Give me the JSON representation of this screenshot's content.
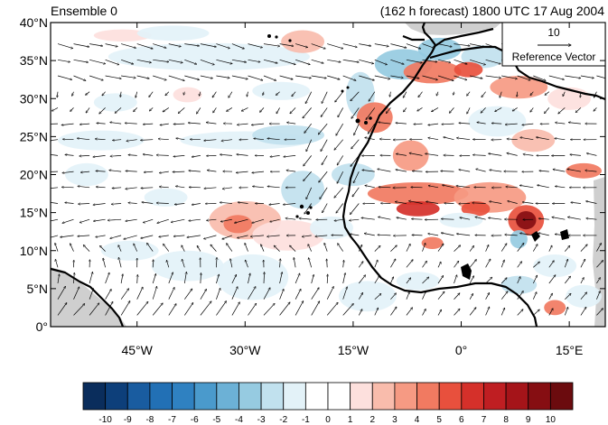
{
  "header": {
    "left_title": "Ensemble 0",
    "right_title": "(162 h forecast) 1800 UTC 17 Aug 2004"
  },
  "reference_vector": {
    "magnitude_label": "10",
    "label": "Reference Vector"
  },
  "map": {
    "lon_range": [
      -57,
      20
    ],
    "lat_range": [
      0,
      40
    ],
    "y_ticks": [
      {
        "lat": 40,
        "label": "40°N"
      },
      {
        "lat": 35,
        "label": "35°N"
      },
      {
        "lat": 30,
        "label": "30°N"
      },
      {
        "lat": 25,
        "label": "25°N"
      },
      {
        "lat": 20,
        "label": "20°N"
      },
      {
        "lat": 15,
        "label": "15°N"
      },
      {
        "lat": 10,
        "label": "10°N"
      },
      {
        "lat": 5,
        "label": "5°N"
      },
      {
        "lat": 0,
        "label": "0°"
      }
    ],
    "x_ticks": [
      {
        "lon": -45,
        "label": "45°W"
      },
      {
        "lon": -30,
        "label": "30°W"
      },
      {
        "lon": -15,
        "label": "15°W"
      },
      {
        "lon": 0,
        "label": "0°"
      },
      {
        "lon": 15,
        "label": "15°E"
      }
    ],
    "anomalies": [
      {
        "lon": -47,
        "lat": 38.3,
        "rx": 4,
        "ry": 0.8,
        "value": 1.5
      },
      {
        "lon": -40,
        "lat": 38.6,
        "rx": 5,
        "ry": 1,
        "value": -2
      },
      {
        "lon": -35,
        "lat": 35.5,
        "rx": 14,
        "ry": 1.8,
        "value": -2
      },
      {
        "lon": -22,
        "lat": 37.5,
        "rx": 3,
        "ry": 1.5,
        "value": 2
      },
      {
        "lon": -25,
        "lat": 31,
        "rx": 4,
        "ry": 1.2,
        "value": -1.5
      },
      {
        "lon": -48,
        "lat": 29.5,
        "rx": 3,
        "ry": 1.2,
        "value": -1.5
      },
      {
        "lon": -38,
        "lat": 30.5,
        "rx": 2,
        "ry": 1,
        "value": 1.5
      },
      {
        "lon": -50,
        "lat": 24.5,
        "rx": 6,
        "ry": 1.3,
        "value": -2
      },
      {
        "lon": -30,
        "lat": 24.5,
        "rx": 9,
        "ry": 1.2,
        "value": -2
      },
      {
        "lon": -24,
        "lat": 25.2,
        "rx": 5,
        "ry": 1.3,
        "value": -2.5
      },
      {
        "lon": -22,
        "lat": 18,
        "rx": 3,
        "ry": 2.5,
        "value": -2.5
      },
      {
        "lon": -52,
        "lat": 20,
        "rx": 3,
        "ry": 1.5,
        "value": -1.5
      },
      {
        "lon": -41,
        "lat": 17,
        "rx": 3,
        "ry": 1.2,
        "value": -1.5
      },
      {
        "lon": -30,
        "lat": 14,
        "rx": 5,
        "ry": 2.5,
        "value": 2
      },
      {
        "lon": -31,
        "lat": 13.5,
        "rx": 2,
        "ry": 1.2,
        "value": 4
      },
      {
        "lon": -24,
        "lat": 12,
        "rx": 5,
        "ry": 2,
        "value": 1.5
      },
      {
        "lon": -38,
        "lat": 8,
        "rx": 5,
        "ry": 2,
        "value": -2
      },
      {
        "lon": -46,
        "lat": 10,
        "rx": 4,
        "ry": 1.3,
        "value": -1.5
      },
      {
        "lon": -29,
        "lat": 6.5,
        "rx": 5,
        "ry": 3,
        "value": -2
      },
      {
        "lon": -13,
        "lat": 4,
        "rx": 4,
        "ry": 2,
        "value": -2
      },
      {
        "lon": -18,
        "lat": 13,
        "rx": 3,
        "ry": 1.5,
        "value": -2
      },
      {
        "lon": -14,
        "lat": 30.5,
        "rx": 2,
        "ry": 3,
        "value": -3
      },
      {
        "lon": -8,
        "lat": 34.5,
        "rx": 4,
        "ry": 2,
        "value": -3.5
      },
      {
        "lon": -3,
        "lat": 36.5,
        "rx": 3,
        "ry": 1.5,
        "value": -4
      },
      {
        "lon": 3,
        "lat": 35.5,
        "rx": 3,
        "ry": 1.5,
        "value": -3
      },
      {
        "lon": -4,
        "lat": 33.5,
        "rx": 4,
        "ry": 1.5,
        "value": 4
      },
      {
        "lon": 1,
        "lat": 33.8,
        "rx": 2,
        "ry": 1,
        "value": 5
      },
      {
        "lon": 8,
        "lat": 31.5,
        "rx": 4,
        "ry": 1.5,
        "value": 3
      },
      {
        "lon": 13,
        "lat": 35.5,
        "rx": 2.5,
        "ry": 1,
        "value": 2
      },
      {
        "lon": -12,
        "lat": 27.5,
        "rx": 2.5,
        "ry": 2,
        "value": 4
      },
      {
        "lon": -7,
        "lat": 22.5,
        "rx": 2.5,
        "ry": 2,
        "value": 3
      },
      {
        "lon": 5,
        "lat": 27,
        "rx": 4,
        "ry": 2,
        "value": -2
      },
      {
        "lon": 10,
        "lat": 24.5,
        "rx": 3,
        "ry": 1.5,
        "value": 2
      },
      {
        "lon": 15,
        "lat": 30,
        "rx": 3,
        "ry": 1.5,
        "value": 1.5
      },
      {
        "lon": 17,
        "lat": 20.5,
        "rx": 2.5,
        "ry": 1,
        "value": 4
      },
      {
        "lon": -6,
        "lat": 17.5,
        "rx": 7,
        "ry": 1.5,
        "value": 4
      },
      {
        "lon": -6,
        "lat": 15.5,
        "rx": 3,
        "ry": 1,
        "value": 6
      },
      {
        "lon": 4,
        "lat": 17,
        "rx": 5,
        "ry": 2,
        "value": 3
      },
      {
        "lon": 2,
        "lat": 15.5,
        "rx": 2,
        "ry": 1,
        "value": 5
      },
      {
        "lon": -15,
        "lat": 20,
        "rx": 3,
        "ry": 1.5,
        "value": -3
      },
      {
        "lon": 0,
        "lat": 14,
        "rx": 3,
        "ry": 1,
        "value": -2
      },
      {
        "lon": 9,
        "lat": 14,
        "rx": 2.5,
        "ry": 2,
        "value": 5
      },
      {
        "lon": 9,
        "lat": 14,
        "rx": 1.4,
        "ry": 1.2,
        "value": 9
      },
      {
        "lon": 8,
        "lat": 11.5,
        "rx": 1.2,
        "ry": 1.2,
        "value": -4
      },
      {
        "lon": -4,
        "lat": 11,
        "rx": 1.5,
        "ry": 0.8,
        "value": 4
      },
      {
        "lon": 8,
        "lat": 5.5,
        "rx": 2.5,
        "ry": 1.2,
        "value": -3
      },
      {
        "lon": 13,
        "lat": 8,
        "rx": 3,
        "ry": 1.5,
        "value": -2
      },
      {
        "lon": -6,
        "lat": 6,
        "rx": 3,
        "ry": 1.2,
        "value": -1.5
      },
      {
        "lon": 17,
        "lat": 4,
        "rx": 2.5,
        "ry": 1.5,
        "value": -2
      },
      {
        "lon": 13,
        "lat": 2.5,
        "rx": 1.5,
        "ry": 1,
        "value": 4
      }
    ]
  },
  "colorbar": {
    "colors": [
      "#0a2d5c",
      "#0d3f7a",
      "#195ca0",
      "#2270b5",
      "#2f81c1",
      "#4a9acc",
      "#6cb1d6",
      "#96cbe1",
      "#c1e1ee",
      "#e3f2f8",
      "#ffffff",
      "#ffffff",
      "#fde0dd",
      "#f9bcac",
      "#f69a83",
      "#f17a61",
      "#e8503d",
      "#d5302a",
      "#bf1e22",
      "#a51419",
      "#860e12",
      "#6b0b0e"
    ],
    "labels": [
      "-10",
      "-9",
      "-8",
      "-7",
      "-6",
      "-5",
      "-4",
      "-3",
      "-2",
      "-1",
      "0",
      "1",
      "2",
      "3",
      "4",
      "5",
      "6",
      "7",
      "8",
      "9",
      "10"
    ]
  }
}
